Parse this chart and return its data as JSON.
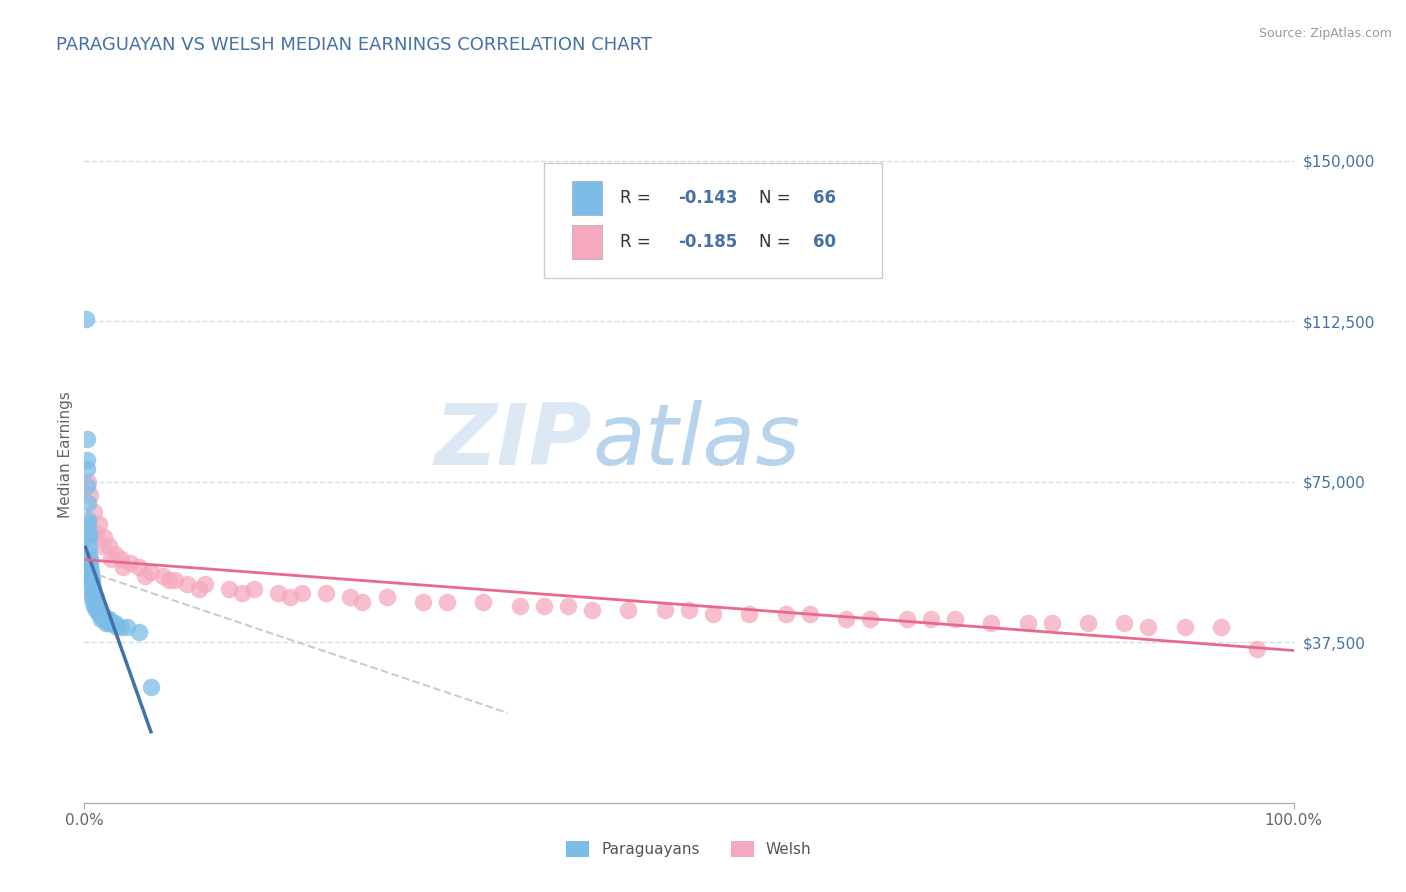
{
  "title": "PARAGUAYAN VS WELSH MEDIAN EARNINGS CORRELATION CHART",
  "source_text": "Source: ZipAtlas.com",
  "ylabel": "Median Earnings",
  "xlabel": "",
  "xlim": [
    0,
    100
  ],
  "ylim": [
    0,
    162500
  ],
  "yticks": [
    0,
    37500,
    75000,
    112500,
    150000
  ],
  "ytick_labels": [
    "",
    "$37,500",
    "$75,000",
    "$112,500",
    "$150,000"
  ],
  "xtick_labels": [
    "0.0%",
    "100.0%"
  ],
  "title_color": "#4472a8",
  "title_fontsize": 13,
  "watermark_zip": "ZIP",
  "watermark_atlas": "atlas",
  "watermark_color_zip": "#dce9f5",
  "watermark_color_atlas": "#b8d4ed",
  "legend_R1": "-0.143",
  "legend_N1": "66",
  "legend_R2": "-0.185",
  "legend_N2": "60",
  "blue_color": "#7bbde8",
  "pink_color": "#f5a8be",
  "trend_blue": "#4472a8",
  "trend_pink": "#e8698a",
  "trend_gray": "#c0c0c0",
  "paraguayan_x": [
    0.15,
    0.18,
    0.2,
    0.22,
    0.25,
    0.28,
    0.3,
    0.32,
    0.35,
    0.38,
    0.4,
    0.42,
    0.45,
    0.48,
    0.5,
    0.52,
    0.55,
    0.58,
    0.6,
    0.62,
    0.65,
    0.68,
    0.7,
    0.72,
    0.75,
    0.78,
    0.8,
    0.85,
    0.9,
    0.95,
    1.0,
    1.05,
    1.1,
    1.15,
    1.2,
    1.3,
    1.4,
    1.5,
    1.6,
    1.7,
    1.8,
    1.9,
    2.0,
    2.1,
    2.2,
    2.3,
    2.5,
    2.7,
    3.0,
    3.5,
    0.2,
    0.3,
    0.4,
    0.5,
    0.6,
    0.7,
    0.8,
    1.0,
    1.2,
    1.4,
    1.6,
    1.8,
    2.0,
    2.2,
    4.5,
    5.5
  ],
  "paraguayan_y": [
    113000,
    85000,
    80000,
    78000,
    74000,
    70000,
    66000,
    65000,
    63000,
    62000,
    60000,
    58000,
    57000,
    56000,
    55000,
    54000,
    53000,
    52000,
    52000,
    51000,
    51000,
    50000,
    50000,
    49000,
    49000,
    48000,
    48000,
    47000,
    47000,
    46000,
    46000,
    46000,
    45000,
    45000,
    45000,
    44000,
    44000,
    44000,
    43000,
    43000,
    43000,
    43000,
    43000,
    42000,
    42000,
    42000,
    42000,
    41000,
    41000,
    41000,
    56000,
    54000,
    52000,
    50000,
    48000,
    47000,
    46000,
    45000,
    44000,
    43000,
    43000,
    42000,
    42000,
    42000,
    40000,
    27000
  ],
  "welsh_x": [
    0.3,
    0.5,
    0.8,
    1.2,
    1.6,
    2.0,
    2.5,
    3.0,
    3.8,
    4.5,
    5.5,
    6.5,
    7.5,
    8.5,
    10.0,
    12.0,
    14.0,
    16.0,
    18.0,
    20.0,
    22.0,
    25.0,
    28.0,
    30.0,
    33.0,
    36.0,
    38.0,
    40.0,
    42.0,
    45.0,
    48.0,
    50.0,
    52.0,
    55.0,
    58.0,
    60.0,
    63.0,
    65.0,
    68.0,
    70.0,
    72.0,
    75.0,
    78.0,
    80.0,
    83.0,
    86.0,
    88.0,
    91.0,
    94.0,
    97.0,
    1.0,
    1.5,
    2.2,
    3.2,
    5.0,
    7.0,
    9.5,
    13.0,
    17.0,
    23.0
  ],
  "welsh_y": [
    75000,
    72000,
    68000,
    65000,
    62000,
    60000,
    58000,
    57000,
    56000,
    55000,
    54000,
    53000,
    52000,
    51000,
    51000,
    50000,
    50000,
    49000,
    49000,
    49000,
    48000,
    48000,
    47000,
    47000,
    47000,
    46000,
    46000,
    46000,
    45000,
    45000,
    45000,
    45000,
    44000,
    44000,
    44000,
    44000,
    43000,
    43000,
    43000,
    43000,
    43000,
    42000,
    42000,
    42000,
    42000,
    42000,
    41000,
    41000,
    41000,
    36000,
    63000,
    60000,
    57000,
    55000,
    53000,
    52000,
    50000,
    49000,
    48000,
    47000
  ],
  "background_color": "#ffffff",
  "plot_bg_color": "#ffffff",
  "grid_color": "#cce0f0",
  "grid_style": "--",
  "legend_fontsize": 12
}
